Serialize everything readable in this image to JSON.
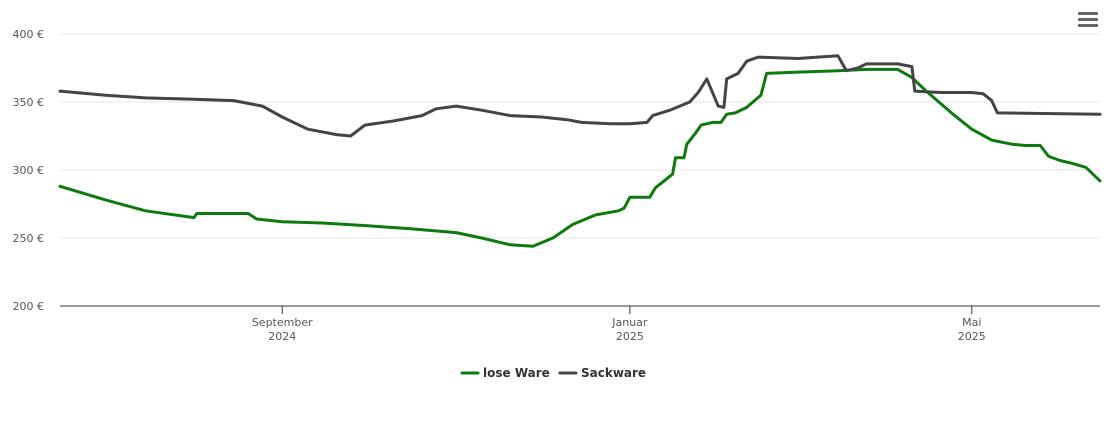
{
  "chart_data": {
    "type": "line",
    "x_axis": {
      "type": "date",
      "range": [
        "2024-06-15",
        "2025-06-15"
      ],
      "ticks": [
        {
          "date": "2024-09-01",
          "month": "September",
          "year": "2024"
        },
        {
          "date": "2025-01-01",
          "month": "Januar",
          "year": "2025"
        },
        {
          "date": "2025-05-01",
          "month": "Mai",
          "year": "2025"
        }
      ]
    },
    "y_axis": {
      "range": [
        200,
        400
      ],
      "ticks": [
        {
          "value": 200,
          "label": "200 €"
        },
        {
          "value": 250,
          "label": "250 €"
        },
        {
          "value": 300,
          "label": "300 €"
        },
        {
          "value": 350,
          "label": "350 €"
        },
        {
          "value": 400,
          "label": "400 €"
        }
      ]
    },
    "gridlines": true,
    "legend_position": "bottom-center",
    "series": [
      {
        "name": "lose Ware",
        "color": "#0e7a0e",
        "points": [
          [
            "2024-06-15",
            288
          ],
          [
            "2024-07-01",
            278
          ],
          [
            "2024-07-15",
            270
          ],
          [
            "2024-08-01",
            265
          ],
          [
            "2024-08-02",
            268
          ],
          [
            "2024-08-20",
            268
          ],
          [
            "2024-08-23",
            264
          ],
          [
            "2024-09-01",
            262
          ],
          [
            "2024-09-15",
            261
          ],
          [
            "2024-10-01",
            259
          ],
          [
            "2024-10-15",
            257
          ],
          [
            "2024-11-01",
            254
          ],
          [
            "2024-11-10",
            250
          ],
          [
            "2024-11-20",
            245
          ],
          [
            "2024-11-28",
            244
          ],
          [
            "2024-12-05",
            250
          ],
          [
            "2024-12-12",
            260
          ],
          [
            "2024-12-20",
            267
          ],
          [
            "2024-12-28",
            270
          ],
          [
            "2024-12-30",
            272
          ],
          [
            "2025-01-01",
            280
          ],
          [
            "2025-01-07",
            280
          ],
          [
            "2025-01-08",
            280
          ],
          [
            "2025-01-10",
            287
          ],
          [
            "2025-01-13",
            292
          ],
          [
            "2025-01-16",
            297
          ],
          [
            "2025-01-17",
            309
          ],
          [
            "2025-01-20",
            309
          ],
          [
            "2025-01-21",
            319
          ],
          [
            "2025-01-24",
            327
          ],
          [
            "2025-01-26",
            333
          ],
          [
            "2025-01-30",
            335
          ],
          [
            "2025-02-02",
            335
          ],
          [
            "2025-02-04",
            341
          ],
          [
            "2025-02-07",
            342
          ],
          [
            "2025-02-11",
            346
          ],
          [
            "2025-02-16",
            355
          ],
          [
            "2025-02-18",
            371
          ],
          [
            "2025-03-01",
            372
          ],
          [
            "2025-03-15",
            373
          ],
          [
            "2025-03-25",
            374
          ],
          [
            "2025-04-05",
            374
          ],
          [
            "2025-04-10",
            368
          ],
          [
            "2025-04-15",
            358
          ],
          [
            "2025-04-25",
            340
          ],
          [
            "2025-05-01",
            330
          ],
          [
            "2025-05-08",
            322
          ],
          [
            "2025-05-15",
            319
          ],
          [
            "2025-05-20",
            318
          ],
          [
            "2025-05-25",
            318
          ],
          [
            "2025-05-28",
            310
          ],
          [
            "2025-06-01",
            307
          ],
          [
            "2025-06-05",
            305
          ],
          [
            "2025-06-10",
            302
          ],
          [
            "2025-06-15",
            292
          ]
        ]
      },
      {
        "name": "Sackware",
        "color": "#434348",
        "points": [
          [
            "2024-06-15",
            358
          ],
          [
            "2024-07-01",
            355
          ],
          [
            "2024-07-15",
            353
          ],
          [
            "2024-08-01",
            352
          ],
          [
            "2024-08-15",
            351
          ],
          [
            "2024-08-25",
            347
          ],
          [
            "2024-09-01",
            339
          ],
          [
            "2024-09-10",
            330
          ],
          [
            "2024-09-20",
            326
          ],
          [
            "2024-09-25",
            325
          ],
          [
            "2024-09-30",
            333
          ],
          [
            "2024-10-10",
            336
          ],
          [
            "2024-10-20",
            340
          ],
          [
            "2024-10-25",
            345
          ],
          [
            "2024-11-01",
            347
          ],
          [
            "2024-11-10",
            344
          ],
          [
            "2024-11-20",
            340
          ],
          [
            "2024-12-01",
            339
          ],
          [
            "2024-12-10",
            337
          ],
          [
            "2024-12-15",
            335
          ],
          [
            "2024-12-25",
            334
          ],
          [
            "2025-01-01",
            334
          ],
          [
            "2025-01-07",
            335
          ],
          [
            "2025-01-09",
            340
          ],
          [
            "2025-01-15",
            344
          ],
          [
            "2025-01-22",
            350
          ],
          [
            "2025-01-25",
            357
          ],
          [
            "2025-01-28",
            367
          ],
          [
            "2025-02-01",
            347
          ],
          [
            "2025-02-03",
            346
          ],
          [
            "2025-02-04",
            367
          ],
          [
            "2025-02-08",
            371
          ],
          [
            "2025-02-11",
            380
          ],
          [
            "2025-02-15",
            383
          ],
          [
            "2025-03-01",
            382
          ],
          [
            "2025-03-15",
            384
          ],
          [
            "2025-03-18",
            373
          ],
          [
            "2025-03-22",
            375
          ],
          [
            "2025-03-25",
            378
          ],
          [
            "2025-04-05",
            378
          ],
          [
            "2025-04-10",
            376
          ],
          [
            "2025-04-11",
            358
          ],
          [
            "2025-04-20",
            357
          ],
          [
            "2025-05-01",
            357
          ],
          [
            "2025-05-05",
            356
          ],
          [
            "2025-05-08",
            351
          ],
          [
            "2025-05-10",
            342
          ],
          [
            "2025-06-15",
            341
          ]
        ]
      }
    ]
  },
  "toolbar": {
    "menu_icon": "hamburger-menu-icon"
  }
}
